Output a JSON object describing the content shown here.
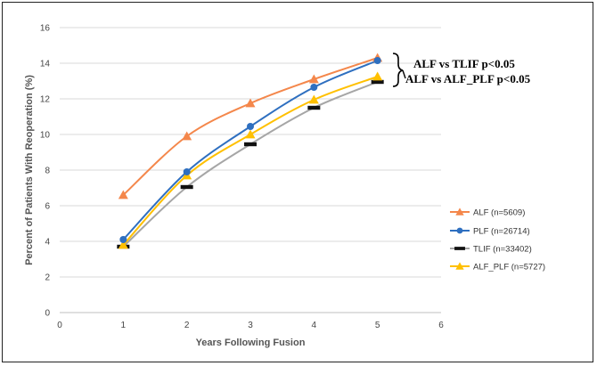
{
  "chart_data": {
    "type": "line",
    "title": "",
    "xlabel": "Years Following Fusion",
    "ylabel": "Percent of Patients With Reoperation (%)",
    "xlim": [
      0,
      6
    ],
    "ylim": [
      0,
      16
    ],
    "x_ticks": [
      "0",
      "1",
      "2",
      "3",
      "4",
      "5",
      "6"
    ],
    "y_ticks": [
      "0",
      "2",
      "4",
      "6",
      "8",
      "10",
      "12",
      "14",
      "16"
    ],
    "grid": true,
    "legend_position": "right",
    "x": [
      1,
      2,
      3,
      4,
      5
    ],
    "series": [
      {
        "name": "ALF (n=5609)",
        "color": "#f4874b",
        "marker": "triangle",
        "values": [
          6.6,
          9.9,
          11.75,
          13.1,
          14.3
        ]
      },
      {
        "name": "PLF (n=26714)",
        "color": "#2e6fc0",
        "marker": "circle",
        "values": [
          4.1,
          7.9,
          10.45,
          12.65,
          14.15
        ]
      },
      {
        "name": "TLIF (n=33402)",
        "color": "#a6a6a6",
        "marker": "dash",
        "values": [
          3.7,
          7.05,
          9.45,
          11.5,
          12.95
        ]
      },
      {
        "name": "ALF_PLF (n=5727)",
        "color": "#ffc000",
        "marker": "triangle",
        "values": [
          3.8,
          7.7,
          10.0,
          11.95,
          13.25
        ]
      }
    ],
    "annotations": [
      "ALF vs TLIF   p<0.05",
      "ALF vs ALF_PLF  p<0.05"
    ]
  }
}
